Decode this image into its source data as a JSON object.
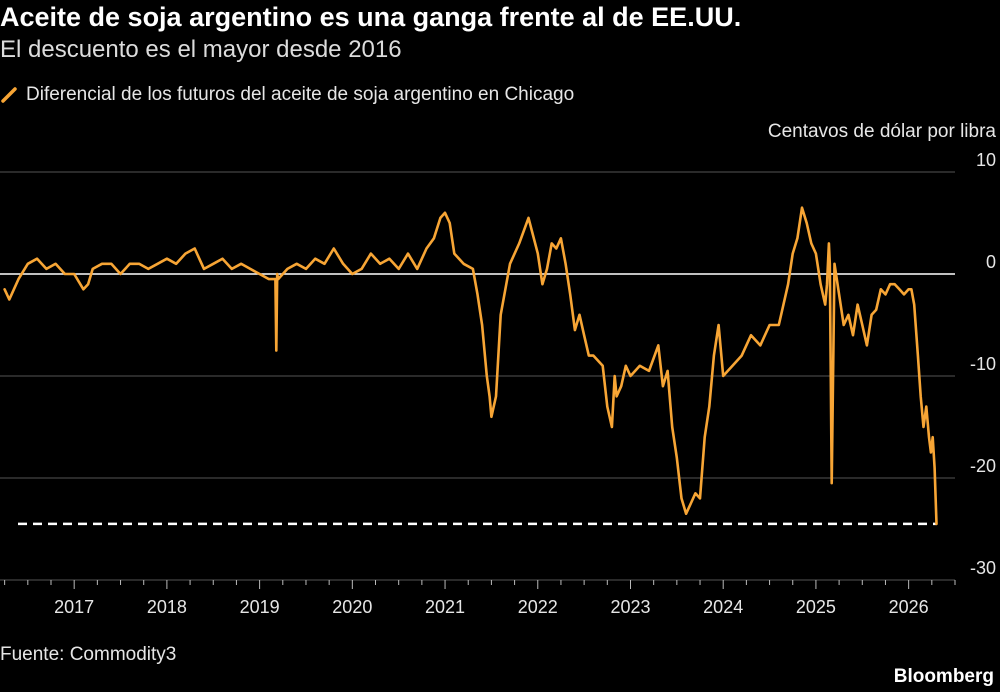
{
  "header": {
    "title": "Aceite de soja argentino es una ganga frente al de EE.UU.",
    "subtitle": "El descuento es el mayor desde 2016"
  },
  "legend": {
    "label": "Diferencial de los futuros del aceite de soja argentino en Chicago"
  },
  "footer": {
    "source": "Fuente: Commodity3",
    "brand": "Bloomberg"
  },
  "colors": {
    "series": "#f7a535",
    "background": "#000000",
    "gridline": "#555555",
    "zero_line": "#ffffff",
    "reference_line": "#ffffff"
  },
  "chart_data": {
    "type": "line",
    "ylabel": "Centavos de dólar por libra",
    "ylim": [
      -30,
      10
    ],
    "xlim": [
      2016.2,
      2026.5
    ],
    "yticks": [
      10,
      0,
      -10,
      -20,
      -30
    ],
    "ytick_labels": [
      "10",
      "0",
      "-10",
      "-20",
      "-30"
    ],
    "xticks": [
      2017,
      2018,
      2019,
      2020,
      2021,
      2022,
      2023,
      2024,
      2025,
      2026
    ],
    "xtick_labels": [
      "2017",
      "2018",
      "2019",
      "2020",
      "2021",
      "2022",
      "2023",
      "2024",
      "2025",
      "2026"
    ],
    "grid": true,
    "reference_line": {
      "y": -24.5,
      "style": "dashed"
    },
    "series": [
      {
        "name": "Diferencial de los futuros del aceite de soja argentino en Chicago",
        "x": [
          2016.25,
          2016.3,
          2016.35,
          2016.4,
          2016.5,
          2016.6,
          2016.7,
          2016.8,
          2016.9,
          2017.0,
          2017.1,
          2017.15,
          2017.2,
          2017.3,
          2017.4,
          2017.5,
          2017.6,
          2017.7,
          2017.8,
          2017.9,
          2018.0,
          2018.1,
          2018.2,
          2018.3,
          2018.35,
          2018.4,
          2018.5,
          2018.6,
          2018.7,
          2018.8,
          2018.9,
          2019.0,
          2019.1,
          2019.17,
          2019.18,
          2019.19,
          2019.2,
          2019.3,
          2019.4,
          2019.5,
          2019.6,
          2019.7,
          2019.8,
          2019.9,
          2020.0,
          2020.1,
          2020.2,
          2020.3,
          2020.4,
          2020.5,
          2020.6,
          2020.7,
          2020.8,
          2020.88,
          2020.95,
          2021.0,
          2021.05,
          2021.1,
          2021.2,
          2021.3,
          2021.35,
          2021.4,
          2021.45,
          2021.48,
          2021.5,
          2021.55,
          2021.6,
          2021.7,
          2021.8,
          2021.9,
          2022.0,
          2022.05,
          2022.1,
          2022.15,
          2022.2,
          2022.25,
          2022.3,
          2022.35,
          2022.4,
          2022.45,
          2022.5,
          2022.55,
          2022.6,
          2022.7,
          2022.75,
          2022.8,
          2022.83,
          2022.85,
          2022.9,
          2022.95,
          2023.0,
          2023.1,
          2023.2,
          2023.3,
          2023.35,
          2023.4,
          2023.45,
          2023.5,
          2023.55,
          2023.6,
          2023.65,
          2023.7,
          2023.75,
          2023.8,
          2023.85,
          2023.9,
          2023.95,
          2024.0,
          2024.05,
          2024.1,
          2024.2,
          2024.3,
          2024.4,
          2024.5,
          2024.6,
          2024.7,
          2024.75,
          2024.8,
          2024.85,
          2024.9,
          2024.95,
          2025.0,
          2025.05,
          2025.1,
          2025.12,
          2025.14,
          2025.15,
          2025.17,
          2025.2,
          2025.25,
          2025.3,
          2025.35,
          2025.4,
          2025.45,
          2025.5,
          2025.55,
          2025.6,
          2025.65,
          2025.7,
          2025.75,
          2025.8,
          2025.85,
          2025.9,
          2025.95,
          2026.0,
          2026.03,
          2026.06,
          2026.1,
          2026.13,
          2026.16,
          2026.19,
          2026.22,
          2026.24,
          2026.26,
          2026.28,
          2026.3
        ],
        "y": [
          -1.5,
          -2.5,
          -1.5,
          -0.5,
          1.0,
          1.5,
          0.5,
          1.0,
          0.0,
          0.0,
          -1.5,
          -1.0,
          0.5,
          1.0,
          1.0,
          0.0,
          1.0,
          1.0,
          0.5,
          1.0,
          1.5,
          1.0,
          2.0,
          2.5,
          1.5,
          0.5,
          1.0,
          1.5,
          0.5,
          1.0,
          0.5,
          0.0,
          -0.5,
          -0.5,
          -7.5,
          0.0,
          -0.5,
          0.5,
          1.0,
          0.5,
          1.5,
          1.0,
          2.5,
          1.0,
          0.0,
          0.5,
          2.0,
          1.0,
          1.5,
          0.5,
          2.0,
          0.5,
          2.5,
          3.5,
          5.5,
          6.0,
          5.0,
          2.0,
          1.0,
          0.5,
          -2.0,
          -5.0,
          -10.0,
          -12.0,
          -14.0,
          -12.0,
          -4.0,
          1.0,
          3.0,
          5.5,
          2.0,
          -1.0,
          0.5,
          3.0,
          2.5,
          3.5,
          1.0,
          -2.0,
          -5.5,
          -4.0,
          -6.0,
          -8.0,
          -8.0,
          -9.0,
          -13.0,
          -15.0,
          -10.0,
          -12.0,
          -11.0,
          -9.0,
          -10.0,
          -9.0,
          -9.5,
          -7.0,
          -11.0,
          -9.5,
          -15.0,
          -18.0,
          -22.0,
          -23.5,
          -22.5,
          -21.5,
          -22.0,
          -16.0,
          -13.0,
          -8.0,
          -5.0,
          -10.0,
          -9.5,
          -9.0,
          -8.0,
          -6.0,
          -7.0,
          -5.0,
          -5.0,
          -1.0,
          2.0,
          3.5,
          6.5,
          5.0,
          3.0,
          2.0,
          -1.0,
          -3.0,
          -1.0,
          3.0,
          1.0,
          -20.5,
          1.0,
          -2.0,
          -5.0,
          -4.0,
          -6.0,
          -3.0,
          -5.0,
          -7.0,
          -4.0,
          -3.5,
          -1.5,
          -2.0,
          -1.0,
          -1.0,
          -1.5,
          -2.0,
          -1.5,
          -1.5,
          -3.0,
          -8.0,
          -12.0,
          -15.0,
          -13.0,
          -16.0,
          -17.5,
          -16.0,
          -19.0,
          -24.5
        ]
      }
    ]
  }
}
